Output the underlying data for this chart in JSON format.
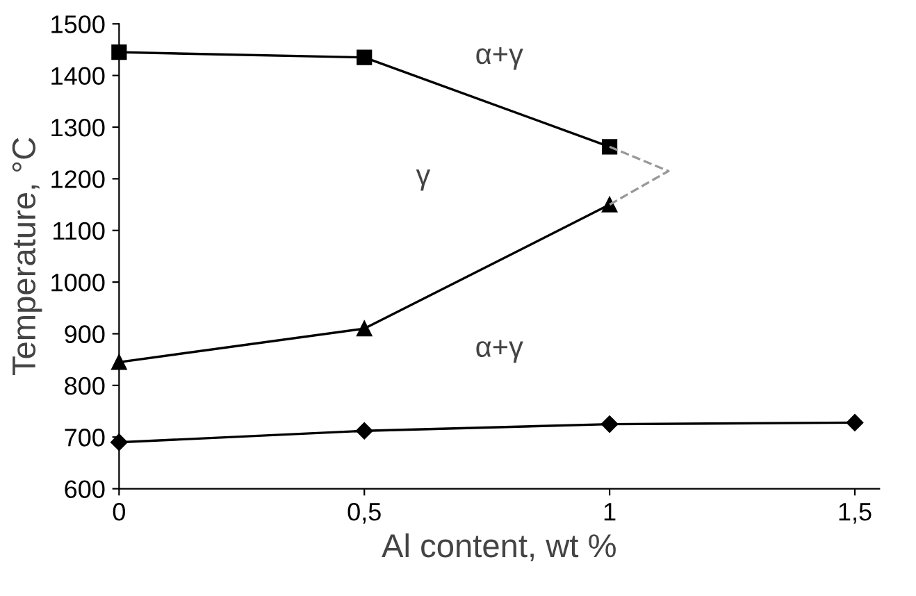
{
  "chart_data": {
    "type": "line",
    "xlabel": "Al content, wt %",
    "ylabel": "Temperature, °C",
    "xlim": [
      0,
      1.55
    ],
    "ylim": [
      600,
      1500
    ],
    "xticks": [
      0,
      {
        "value": 0.5,
        "label": "0,5"
      },
      1,
      {
        "value": 1.5,
        "label": "1,5"
      }
    ],
    "yticks": [
      600,
      700,
      800,
      900,
      1000,
      1100,
      1200,
      1300,
      1400,
      1500
    ],
    "grid": false,
    "legend": false,
    "series": [
      {
        "x": [
          0,
          0.5,
          1
        ],
        "values": [
          1445,
          1435,
          1262
        ],
        "color": "#000000",
        "marker": "square",
        "line_style": "solid"
      },
      {
        "x": [
          0,
          0.5,
          1
        ],
        "values": [
          845,
          910,
          1150
        ],
        "color": "#000000",
        "marker": "triangle",
        "line_style": "solid"
      },
      {
        "x": [
          0,
          0.5,
          1,
          1.5
        ],
        "values": [
          690,
          712,
          725,
          728
        ],
        "color": "#000000",
        "marker": "diamond",
        "line_style": "solid"
      },
      {
        "x": [
          1,
          1.12,
          1
        ],
        "values": [
          1262,
          1215,
          1150
        ],
        "color": "#999999",
        "marker": "none",
        "line_style": "dashed"
      }
    ],
    "annotations": [
      "α+γ",
      "γ",
      "α+γ"
    ]
  }
}
